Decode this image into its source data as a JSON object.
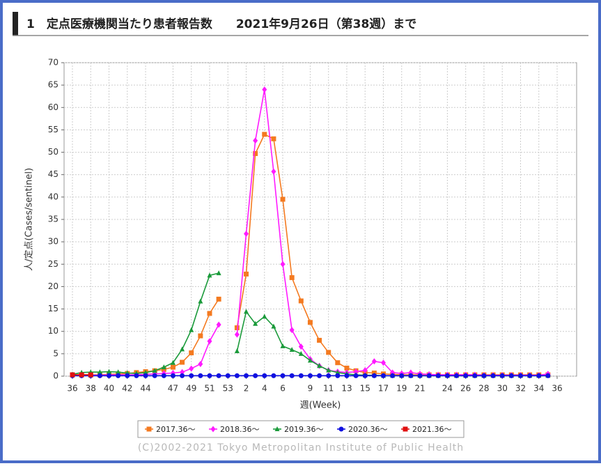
{
  "chart_data": {
    "type": "line",
    "title": "1　定点医療機関当たり患者報告数　　2021年9月26日（第38週）まで",
    "xlabel": "週(Week)",
    "ylabel": "人/定点(Cases/sentinel)",
    "credit": "(C)2002-2021 Tokyo Metropolitan Institute of Public Health",
    "grid": true,
    "legend": "bottom",
    "categories": [
      "36",
      null,
      "38",
      null,
      "40",
      null,
      "42",
      null,
      "44",
      null,
      null,
      "47",
      null,
      "49",
      null,
      "51",
      null,
      "53",
      null,
      "2",
      null,
      "4",
      null,
      "6",
      null,
      null,
      "9",
      null,
      "11",
      null,
      "13",
      null,
      "15",
      null,
      "17",
      null,
      "19",
      null,
      "21",
      null,
      null,
      "24",
      null,
      "26",
      null,
      "28",
      null,
      "30",
      null,
      "32",
      null,
      "34",
      null,
      "36"
    ],
    "ylim": [
      0,
      70
    ],
    "yticks": [
      0,
      5,
      10,
      15,
      20,
      25,
      30,
      35,
      40,
      45,
      50,
      55,
      60,
      65,
      70
    ],
    "series": [
      {
        "name": "2017.36～",
        "color": "#f47a20",
        "marker": "square",
        "values": [
          0.3,
          0.3,
          0.3,
          0.3,
          0.4,
          0.5,
          0.6,
          0.8,
          1.0,
          1.2,
          1.5,
          2.0,
          3.1,
          5.2,
          9.0,
          14.0,
          17.2,
          null,
          10.8,
          22.8,
          49.7,
          54.0,
          53.0,
          39.5,
          22.0,
          16.8,
          12.0,
          8.0,
          5.3,
          3.0,
          1.8,
          1.2,
          0.8,
          0.7,
          0.5,
          0.4,
          0.3,
          0.3,
          0.3,
          0.3,
          0.3,
          0.3,
          0.3,
          0.3,
          0.3,
          0.3,
          0.3,
          0.3,
          0.3,
          0.3,
          0.3,
          0.3,
          0.3,
          null
        ]
      },
      {
        "name": "2018.36～",
        "color": "#ff1aff",
        "marker": "diamond",
        "values": [
          0.2,
          0.2,
          0.2,
          0.2,
          0.3,
          0.3,
          0.3,
          0.3,
          0.4,
          0.5,
          0.6,
          0.7,
          0.9,
          1.7,
          2.7,
          7.8,
          11.5,
          null,
          9.3,
          31.8,
          52.6,
          64.0,
          45.7,
          25.0,
          10.3,
          6.6,
          3.8,
          2.3,
          1.3,
          1.0,
          0.8,
          1.0,
          1.3,
          3.3,
          3.0,
          0.8,
          0.6,
          0.8,
          0.5,
          0.4,
          0.3,
          0.3,
          0.3,
          0.3,
          0.3,
          0.2,
          0.2,
          0.2,
          0.2,
          0.2,
          0.2,
          0.2,
          0.5,
          null
        ]
      },
      {
        "name": "2019.36～",
        "color": "#1a9a3a",
        "marker": "triangle",
        "values": [
          0.4,
          0.8,
          0.9,
          0.9,
          1.0,
          0.9,
          0.7,
          0.6,
          0.8,
          1.2,
          2.0,
          3.0,
          6.0,
          10.3,
          16.7,
          22.5,
          23.0,
          null,
          5.6,
          14.4,
          11.7,
          13.3,
          11.1,
          6.7,
          5.9,
          5.0,
          3.5,
          2.3,
          1.3,
          0.8,
          0.5,
          0.3,
          0.2,
          0.2,
          0.1,
          0.1,
          0.1,
          0.1,
          0.1,
          0.1,
          0.1,
          0.1,
          0.1,
          0.1,
          0.1,
          0.1,
          0.1,
          0.1,
          0.1,
          0.1,
          0.1,
          0.1,
          0.1,
          null
        ]
      },
      {
        "name": "2020.36～",
        "color": "#1010e0",
        "marker": "circle",
        "values": [
          0.1,
          0.1,
          0.1,
          0.1,
          0.1,
          0.1,
          0.1,
          0.1,
          0.1,
          0.1,
          0.1,
          0.1,
          0.1,
          0.1,
          0.1,
          0.1,
          0.1,
          0.1,
          0.1,
          0.1,
          0.1,
          0.1,
          0.1,
          0.1,
          0.1,
          0.1,
          0.1,
          0.1,
          0.1,
          0.1,
          0.1,
          0.1,
          0.1,
          0.1,
          0.1,
          0.1,
          0.1,
          0.1,
          0.1,
          0.1,
          0.1,
          0.1,
          0.1,
          0.1,
          0.1,
          0.1,
          0.1,
          0.1,
          0.1,
          0.1,
          0.1,
          0.1,
          0.1,
          null
        ]
      },
      {
        "name": "2021.36～",
        "color": "#e01010",
        "marker": "square",
        "values": [
          0.3,
          0.3,
          0.3,
          null,
          null,
          null,
          null,
          null,
          null,
          null,
          null,
          null,
          null,
          null,
          null,
          null,
          null,
          null,
          null,
          null,
          null,
          null,
          null,
          null,
          null,
          null,
          null,
          null,
          null,
          null,
          null,
          null,
          null,
          null,
          null,
          null,
          null,
          null,
          null,
          null,
          null,
          null,
          null,
          null,
          null,
          null,
          null,
          null,
          null,
          null,
          null,
          null,
          null,
          null
        ]
      }
    ]
  }
}
